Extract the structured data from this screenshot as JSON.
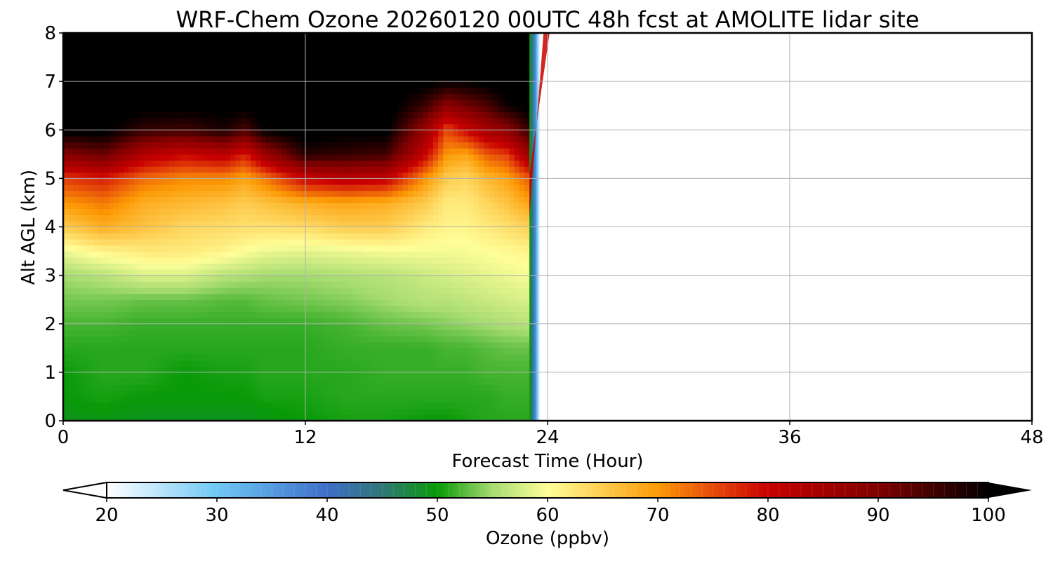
{
  "chart_data": {
    "type": "heatmap",
    "title": "WRF-Chem Ozone  20260120 00UTC 48h fcst at AMOLITE lidar site",
    "xlabel": "Forecast Time (Hour)",
    "ylabel": "Alt AGL (km)",
    "xlim": [
      0,
      48
    ],
    "ylim": [
      0,
      8
    ],
    "x_ticks": [
      0,
      12,
      24,
      36,
      48
    ],
    "y_ticks": [
      0,
      1,
      2,
      3,
      4,
      5,
      6,
      7,
      8
    ],
    "grid": true,
    "data_extent_hours": [
      0,
      23.5
    ],
    "x": [
      0,
      2,
      4,
      6,
      8,
      9,
      10,
      12,
      14,
      16,
      18,
      19,
      20,
      21,
      22,
      23.1
    ],
    "y": [
      0,
      0.5,
      1,
      1.5,
      2,
      2.5,
      3,
      3.5,
      4,
      4.5,
      5,
      5.5,
      6,
      6.5,
      7,
      7.5,
      8
    ],
    "z": [
      [
        49,
        49.5,
        49,
        49,
        49,
        49,
        49.5,
        50,
        50.5,
        50.5,
        50,
        50,
        50.5,
        51,
        51,
        51
      ],
      [
        50,
        50.5,
        50,
        50,
        50,
        50,
        50.5,
        50.5,
        51,
        51,
        51,
        51,
        51,
        51,
        51.5,
        51.5
      ],
      [
        50,
        51,
        51,
        50,
        50.5,
        50.5,
        51,
        51,
        51,
        51.5,
        51.5,
        51.5,
        51.5,
        52,
        52,
        52
      ],
      [
        51,
        51,
        51,
        51,
        51,
        51,
        51,
        51,
        51.5,
        51.5,
        51.5,
        52,
        52,
        52.5,
        53,
        53
      ],
      [
        52,
        52,
        51.5,
        51.5,
        51.5,
        51.5,
        51.5,
        51.5,
        52,
        53,
        53.5,
        54,
        54.5,
        55,
        55.5,
        56
      ],
      [
        53.5,
        53.5,
        53,
        53,
        52.5,
        52.5,
        53,
        53.5,
        54,
        55,
        56,
        56,
        56.5,
        57,
        57.5,
        58
      ],
      [
        55,
        56,
        58,
        58,
        56,
        55.5,
        55,
        55,
        55.5,
        56,
        57,
        57.5,
        58,
        58.5,
        59,
        59.5
      ],
      [
        59,
        61,
        62,
        62,
        61,
        60,
        59,
        58.5,
        59,
        59.5,
        59.5,
        59.5,
        59.5,
        60,
        60.5,
        61
      ],
      [
        65,
        68,
        66,
        64,
        63.5,
        63,
        63,
        63.5,
        65,
        65,
        62,
        61,
        61,
        62,
        63,
        64.5
      ],
      [
        70,
        72,
        68,
        67,
        66,
        65,
        66,
        68,
        69,
        68,
        65,
        62,
        62,
        64,
        66,
        69
      ],
      [
        76,
        78,
        73,
        71,
        71,
        69,
        72,
        80,
        82,
        81,
        70,
        65,
        64,
        67,
        69,
        74
      ],
      [
        89,
        92,
        83,
        80,
        82,
        78,
        86,
        97,
        96,
        95,
        80,
        70,
        69,
        74,
        76,
        86
      ],
      [
        101,
        101,
        96,
        95,
        98,
        94,
        100,
        102,
        101,
        101,
        86,
        75,
        80,
        85,
        88,
        96
      ],
      [
        102,
        102,
        101,
        101,
        101,
        101,
        102,
        102,
        102,
        102,
        95,
        88,
        91,
        94,
        99,
        101
      ],
      [
        102,
        102,
        102,
        102,
        102,
        102,
        102,
        102,
        102,
        102,
        101,
        100,
        100,
        101,
        102,
        102
      ],
      [
        102,
        102,
        102,
        102,
        102,
        102,
        102,
        102,
        102,
        102,
        102,
        102,
        102,
        102,
        102,
        102
      ],
      [
        102,
        102,
        102,
        102,
        102,
        102,
        102,
        102,
        102,
        102,
        102,
        102,
        102,
        102,
        102,
        102
      ]
    ],
    "colorbar": {
      "label": "Ozone  (ppbv)",
      "min": 20,
      "max": 100,
      "ticks": [
        20,
        30,
        40,
        50,
        60,
        70,
        80,
        90,
        100
      ],
      "extend": "both",
      "stops": [
        {
          "value": 20,
          "color": "#ffffff"
        },
        {
          "value": 30,
          "color": "#6ec8f5"
        },
        {
          "value": 40,
          "color": "#3d6ec9"
        },
        {
          "value": 45,
          "color": "#2f7676"
        },
        {
          "value": 50,
          "color": "#089a08"
        },
        {
          "value": 55,
          "color": "#a6dc70"
        },
        {
          "value": 60,
          "color": "#fffe99"
        },
        {
          "value": 70,
          "color": "#fc9a05"
        },
        {
          "value": 75,
          "color": "#e74b0a"
        },
        {
          "value": 80,
          "color": "#c80000"
        },
        {
          "value": 90,
          "color": "#800000"
        },
        {
          "value": 100,
          "color": "#000000"
        }
      ]
    }
  }
}
